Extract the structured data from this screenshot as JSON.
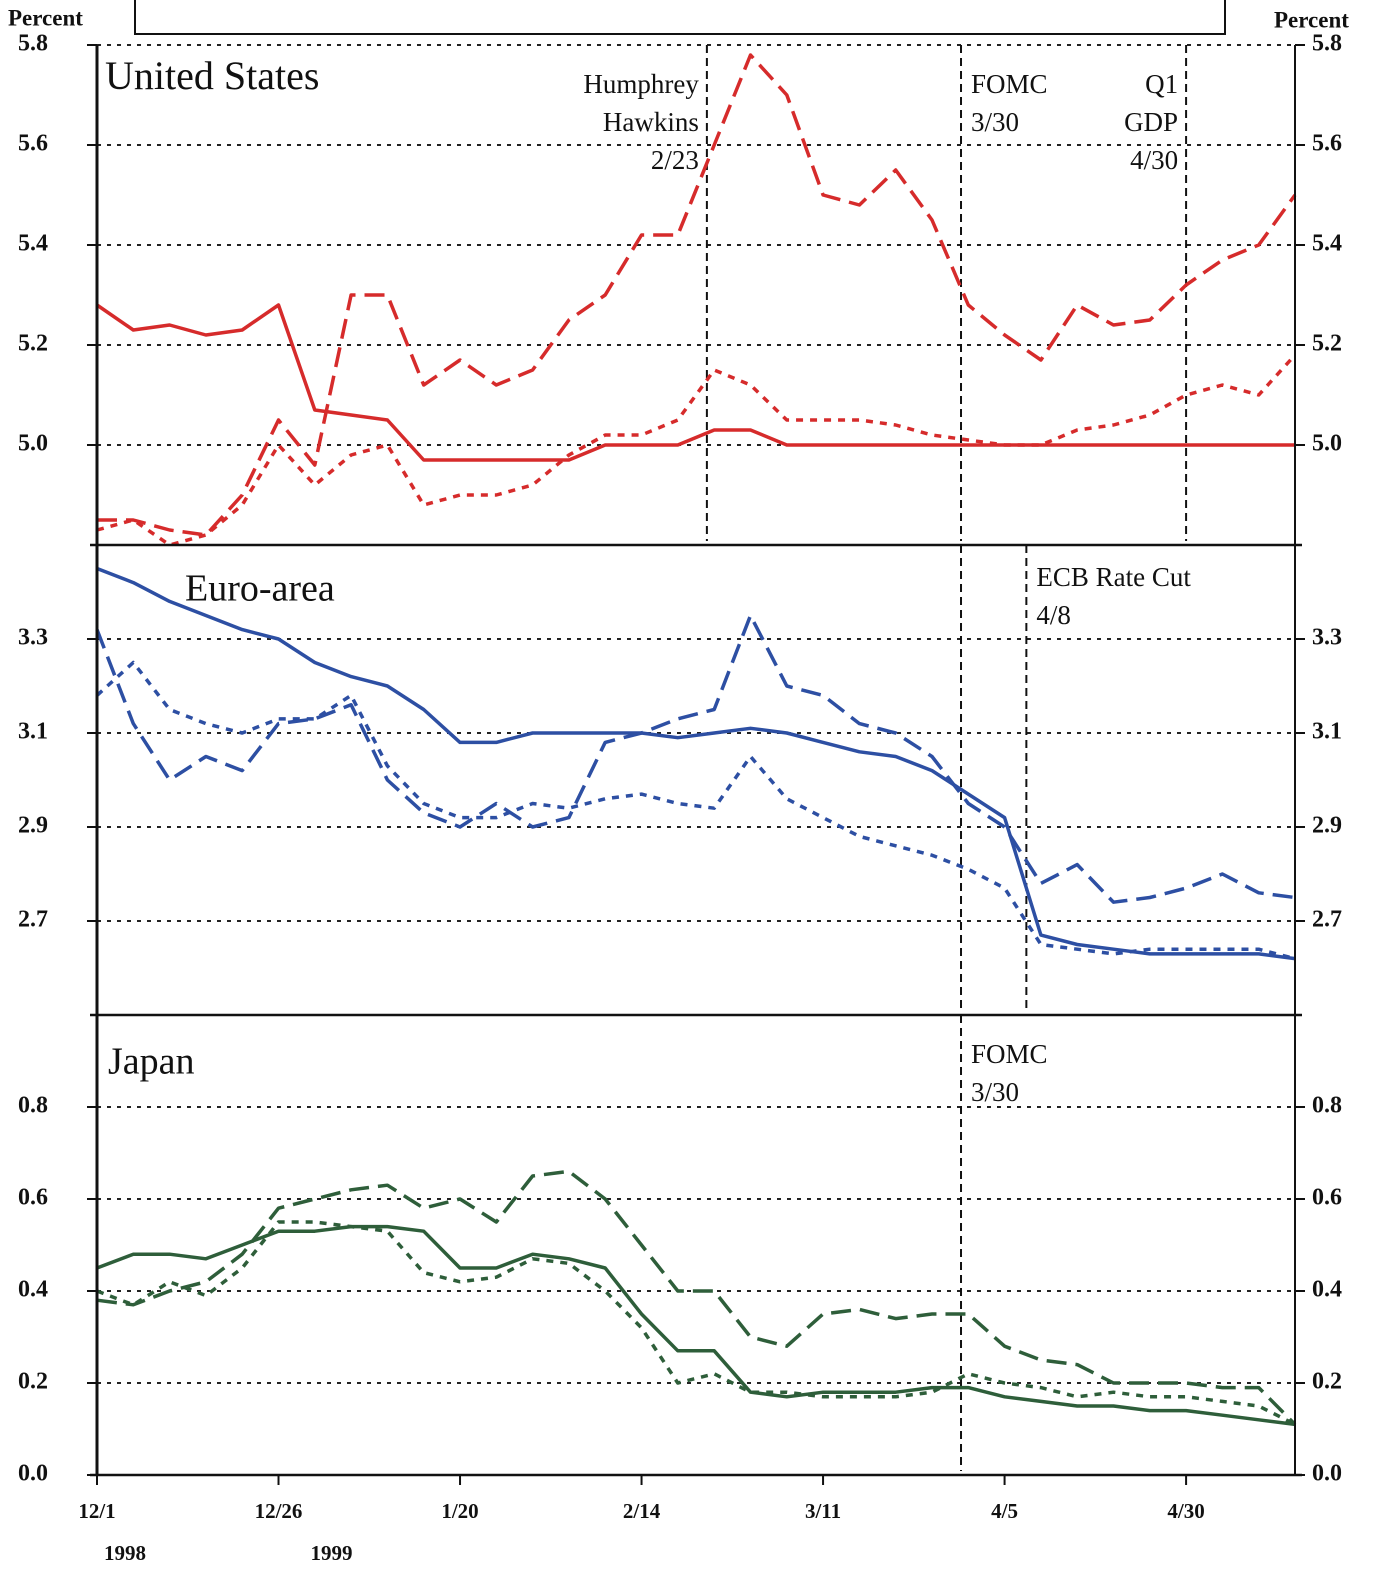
{
  "chart_data": [
    {
      "type": "line",
      "title": "United States",
      "title_color": "#d62b2b",
      "y_label": "Percent",
      "xlim": [
        0,
        165
      ],
      "ylim": [
        4.8,
        5.8
      ],
      "yticks": [
        {
          "value": 5,
          "label": "5.0"
        },
        5.2,
        5.4,
        5.6,
        5.8
      ],
      "grid": true,
      "x": [
        0,
        5,
        10,
        15,
        20,
        25,
        30,
        35,
        40,
        45,
        50,
        55,
        60,
        65,
        70,
        75,
        80,
        85,
        90,
        95,
        100,
        105,
        110,
        115,
        120,
        125,
        130,
        135,
        140,
        145,
        150,
        155,
        160,
        165
      ],
      "series": [
        {
          "color": "#d62b2b",
          "dash": "solid",
          "values": [
            5.28,
            5.23,
            5.24,
            5.22,
            5.23,
            5.28,
            5.07,
            5.06,
            5.05,
            4.97,
            4.97,
            4.97,
            4.97,
            4.97,
            5.0,
            5.0,
            5.0,
            5.03,
            5.03,
            5.0,
            5.0,
            5.0,
            5.0,
            5.0,
            5.0,
            5.0,
            5.0,
            5.0,
            5.0,
            5.0,
            5.0,
            5.0,
            5.0,
            5.0
          ]
        },
        {
          "color": "#d62b2b",
          "dash": "long",
          "values": [
            4.85,
            4.85,
            4.83,
            4.82,
            4.9,
            5.05,
            4.96,
            5.3,
            5.3,
            5.12,
            5.17,
            5.12,
            5.15,
            5.25,
            5.3,
            5.42,
            5.42,
            5.6,
            5.78,
            5.7,
            5.5,
            5.48,
            5.55,
            5.45,
            5.28,
            5.22,
            5.17,
            5.28,
            5.24,
            5.25,
            5.32,
            5.37,
            5.4,
            5.5
          ]
        },
        {
          "color": "#d62b2b",
          "dash": "short",
          "values": [
            4.83,
            4.85,
            4.8,
            4.82,
            4.88,
            5.0,
            4.92,
            4.98,
            5.0,
            4.88,
            4.9,
            4.9,
            4.92,
            4.98,
            5.02,
            5.02,
            5.05,
            5.15,
            5.12,
            5.05,
            5.05,
            5.05,
            5.04,
            5.02,
            5.01,
            5.0,
            5.0,
            5.03,
            5.04,
            5.06,
            5.1,
            5.12,
            5.1,
            5.18
          ]
        }
      ],
      "annotations": [
        {
          "x": 84,
          "anchor": "end",
          "lines": [
            "Humphrey",
            "Hawkins",
            "2/23"
          ]
        },
        {
          "x": 119,
          "anchor": "start",
          "lines": [
            "FOMC",
            "3/30"
          ]
        },
        {
          "x": 150,
          "anchor": "end",
          "lines": [
            "Q1",
            "GDP",
            "4/30"
          ]
        }
      ]
    },
    {
      "type": "line",
      "title": "Euro-area",
      "title_color": "#2d4fa3",
      "xlim": [
        0,
        165
      ],
      "ylim": [
        2.5,
        3.5
      ],
      "yticks": [
        2.7,
        2.9,
        3.1,
        3.3
      ],
      "grid": true,
      "x": [
        0,
        5,
        10,
        15,
        20,
        25,
        30,
        35,
        40,
        45,
        50,
        55,
        60,
        65,
        70,
        75,
        80,
        85,
        90,
        95,
        100,
        105,
        110,
        115,
        120,
        125,
        130,
        135,
        140,
        145,
        150,
        155,
        160,
        165
      ],
      "series": [
        {
          "color": "#2d4fa3",
          "dash": "solid",
          "values": [
            3.45,
            3.42,
            3.38,
            3.35,
            3.32,
            3.3,
            3.25,
            3.22,
            3.2,
            3.15,
            3.08,
            3.08,
            3.1,
            3.1,
            3.1,
            3.1,
            3.09,
            3.1,
            3.11,
            3.1,
            3.08,
            3.06,
            3.05,
            3.02,
            2.97,
            2.92,
            2.67,
            2.65,
            2.64,
            2.63,
            2.63,
            2.63,
            2.63,
            2.62
          ]
        },
        {
          "color": "#2d4fa3",
          "dash": "long",
          "values": [
            3.32,
            3.12,
            3.0,
            3.05,
            3.02,
            3.12,
            3.13,
            3.16,
            3.0,
            2.93,
            2.9,
            2.95,
            2.9,
            2.92,
            3.08,
            3.1,
            3.13,
            3.15,
            3.35,
            3.2,
            3.18,
            3.12,
            3.1,
            3.05,
            2.95,
            2.9,
            2.78,
            2.82,
            2.74,
            2.75,
            2.77,
            2.8,
            2.76,
            2.75
          ]
        },
        {
          "color": "#2d4fa3",
          "dash": "short",
          "values": [
            3.18,
            3.25,
            3.15,
            3.12,
            3.1,
            3.13,
            3.13,
            3.18,
            3.03,
            2.95,
            2.92,
            2.92,
            2.95,
            2.94,
            2.96,
            2.97,
            2.95,
            2.94,
            3.05,
            2.96,
            2.92,
            2.88,
            2.86,
            2.84,
            2.81,
            2.77,
            2.65,
            2.64,
            2.63,
            2.64,
            2.64,
            2.64,
            2.64,
            2.62
          ]
        }
      ],
      "annotations": [
        {
          "x": 119
        },
        {
          "x": 128,
          "anchor": "start",
          "lines": [
            "ECB Rate Cut",
            "4/8"
          ]
        }
      ]
    },
    {
      "type": "line",
      "title": "Japan",
      "title_color": "#2e5e3a",
      "xlim": [
        0,
        165
      ],
      "ylim": [
        0,
        1.0
      ],
      "yticks": [
        {
          "value": 0,
          "label": "0.0"
        },
        0.2,
        0.4,
        0.6,
        0.8
      ],
      "grid": true,
      "xticks": [
        {
          "value": 0,
          "label": "12/1"
        },
        {
          "value": 25,
          "label": "12/26"
        },
        {
          "value": 50,
          "label": "1/20"
        },
        {
          "value": 75,
          "label": "2/14"
        },
        {
          "value": 100,
          "label": "3/11"
        },
        {
          "value": 125,
          "label": "4/5"
        },
        {
          "value": 150,
          "label": "4/30"
        }
      ],
      "year_labels": [
        "1998",
        "1999"
      ],
      "x": [
        0,
        5,
        10,
        15,
        20,
        25,
        30,
        35,
        40,
        45,
        50,
        55,
        60,
        65,
        70,
        75,
        80,
        85,
        90,
        95,
        100,
        105,
        110,
        115,
        120,
        125,
        130,
        135,
        140,
        145,
        150,
        155,
        160,
        165
      ],
      "series": [
        {
          "color": "#2e5e3a",
          "dash": "solid",
          "values": [
            0.45,
            0.48,
            0.48,
            0.47,
            0.5,
            0.53,
            0.53,
            0.54,
            0.54,
            0.53,
            0.45,
            0.45,
            0.48,
            0.47,
            0.45,
            0.35,
            0.27,
            0.27,
            0.18,
            0.17,
            0.18,
            0.18,
            0.18,
            0.19,
            0.19,
            0.17,
            0.16,
            0.15,
            0.15,
            0.14,
            0.14,
            0.13,
            0.12,
            0.11
          ]
        },
        {
          "color": "#2e5e3a",
          "dash": "long",
          "values": [
            0.38,
            0.37,
            0.4,
            0.42,
            0.48,
            0.58,
            0.6,
            0.62,
            0.63,
            0.58,
            0.6,
            0.55,
            0.65,
            0.66,
            0.6,
            0.5,
            0.4,
            0.4,
            0.3,
            0.28,
            0.35,
            0.36,
            0.34,
            0.35,
            0.35,
            0.28,
            0.25,
            0.24,
            0.2,
            0.2,
            0.2,
            0.19,
            0.19,
            0.11
          ]
        },
        {
          "color": "#2e5e3a",
          "dash": "short",
          "values": [
            0.4,
            0.37,
            0.42,
            0.39,
            0.45,
            0.55,
            0.55,
            0.54,
            0.53,
            0.44,
            0.42,
            0.43,
            0.47,
            0.46,
            0.4,
            0.32,
            0.2,
            0.22,
            0.18,
            0.18,
            0.17,
            0.17,
            0.17,
            0.18,
            0.22,
            0.2,
            0.19,
            0.17,
            0.18,
            0.17,
            0.17,
            0.16,
            0.15,
            0.11
          ]
        }
      ],
      "annotations": [
        {
          "x": 119,
          "anchor": "start",
          "lines": [
            "FOMC",
            "3/30"
          ]
        }
      ]
    }
  ]
}
